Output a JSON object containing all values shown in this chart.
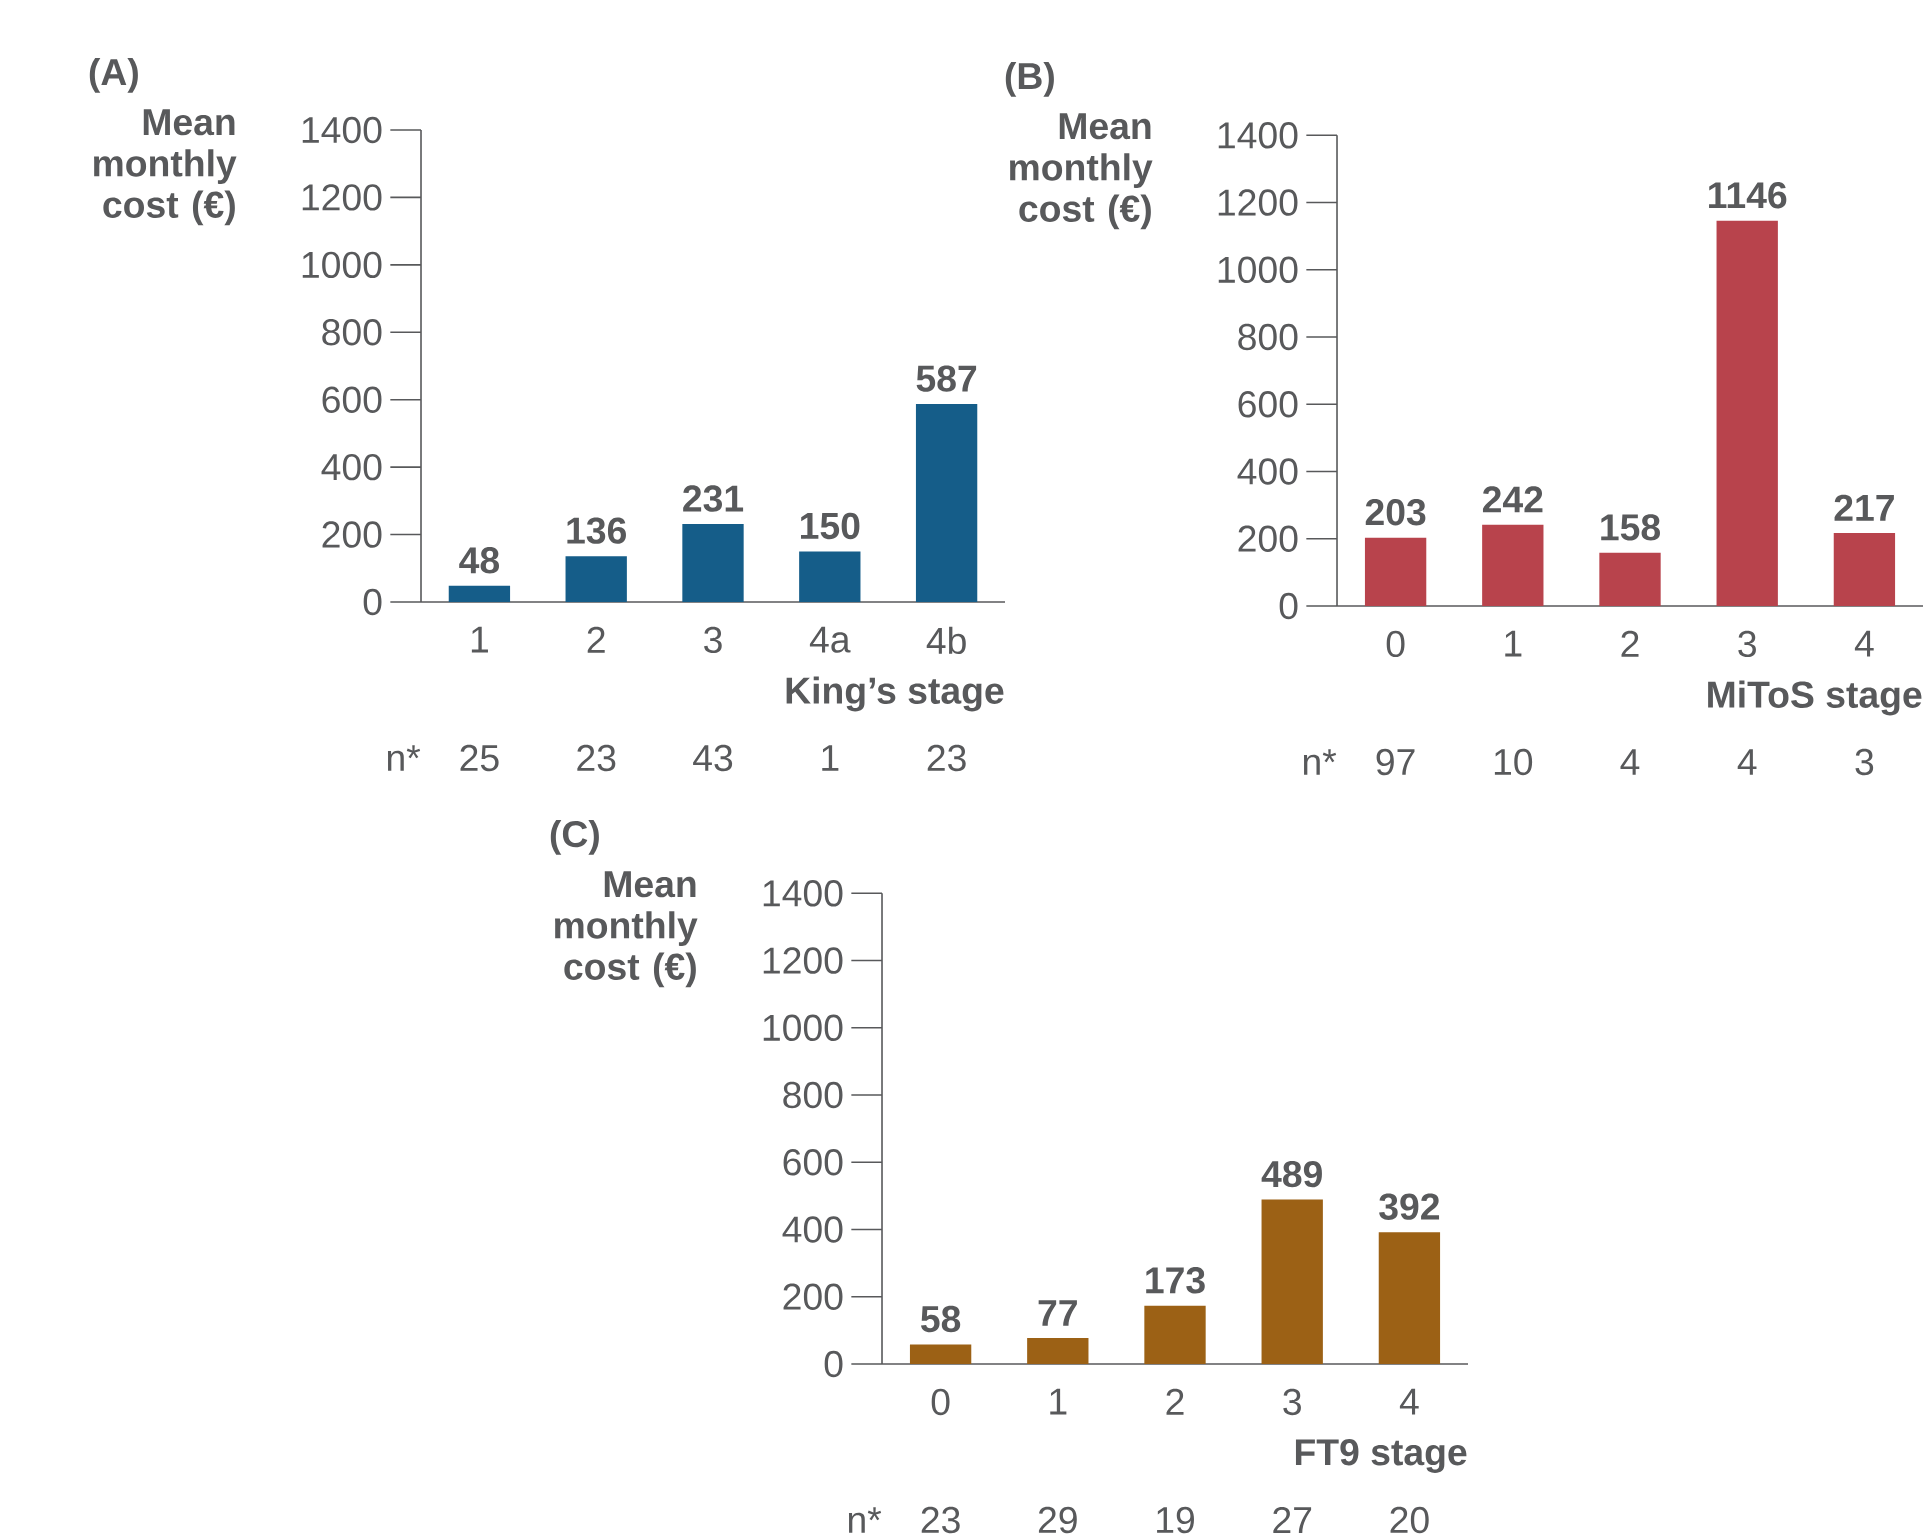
{
  "chart_data": [
    {
      "type": "bar",
      "title": "(A)",
      "ylabel": "Mean monthly cost (€)",
      "xlabel": "King’s stage",
      "categories": [
        "1",
        "2",
        "3",
        "4a",
        "4b"
      ],
      "values": [
        48,
        136,
        231,
        150,
        587
      ],
      "color": "#155d89",
      "ylim": [
        0,
        1400
      ],
      "yticks": [
        0,
        200,
        400,
        600,
        800,
        1000,
        1200,
        1400
      ],
      "data_labels": true,
      "annotations": [
        "n*",
        "25",
        "23",
        "43",
        "1",
        "23"
      ]
    },
    {
      "type": "bar",
      "title": "(B)",
      "ylabel": "Mean monthly cost (€)",
      "xlabel": "MiToS stage",
      "categories": [
        "0",
        "1",
        "2",
        "3",
        "4"
      ],
      "values": [
        203,
        242,
        158,
        1146,
        217
      ],
      "color": "#b8434c",
      "ylim": [
        0,
        1400
      ],
      "yticks": [
        0,
        200,
        400,
        600,
        800,
        1000,
        1200,
        1400
      ],
      "data_labels": true,
      "annotations": [
        "n*",
        "97",
        "10",
        "4",
        "4",
        "3"
      ]
    },
    {
      "type": "bar",
      "title": "(C)",
      "ylabel": "Mean monthly cost (€)",
      "xlabel": "FT9 stage",
      "categories": [
        "0",
        "1",
        "2",
        "3",
        "4"
      ],
      "values": [
        58,
        77,
        173,
        489,
        392
      ],
      "color": "#9c6115",
      "ylim": [
        0,
        1400
      ],
      "yticks": [
        0,
        200,
        400,
        600,
        800,
        1000,
        1200,
        1400
      ],
      "data_labels": true,
      "annotations": [
        "n*",
        "23",
        "29",
        "19",
        "27",
        "20"
      ]
    }
  ]
}
